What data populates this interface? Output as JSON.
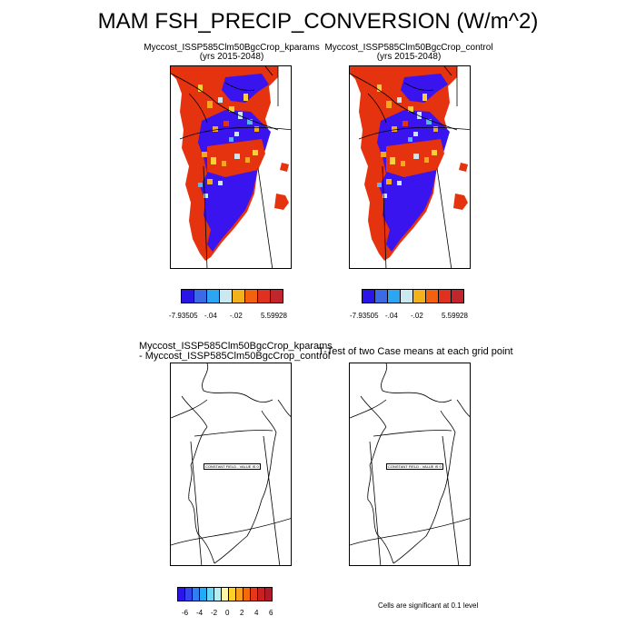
{
  "title": "MAM FSH_PRECIP_CONVERSION (W/m^2)",
  "panels": {
    "top_left": {
      "line1": "Myccost_ISSP585Clm50BgcCrop_kparams",
      "line2": "(yrs 2015-2048)"
    },
    "top_right": {
      "line1": "Myccost_ISSP585Clm50BgcCrop_control",
      "line2": "(yrs 2015-2048)"
    },
    "bottom_left": {
      "line1": "Myccost_ISSP585Clm50BgcCrop_kparams",
      "line2": "- Myccost_ISSP585Clm50BgcCrop_control",
      "const_label": "CONSTANT FIELD - VALUE IS 0"
    },
    "bottom_right": {
      "line1": "T-Test of two Case means at each grid point",
      "const_label": "CONSTANT FIELD - VALUE IS 0"
    }
  },
  "colorbar_top": {
    "colors": [
      "#2a14e6",
      "#3c6ae6",
      "#2ca6f2",
      "#c9e8ef",
      "#f2b21c",
      "#f26010",
      "#e03020",
      "#c0262c"
    ],
    "labels": [
      "-7.93505",
      "-.04",
      "-.02",
      "5.59928"
    ]
  },
  "colorbar_bottom": {
    "colors": [
      "#2a14e6",
      "#3346f0",
      "#2f7ef2",
      "#22aaf5",
      "#68d6f5",
      "#b8ecf5",
      "#fff6a8",
      "#ffd02a",
      "#f8a01c",
      "#f26a10",
      "#e63818",
      "#cc2020",
      "#b01a2a"
    ],
    "labels": [
      "-6",
      "-4",
      "-2",
      "0",
      "2",
      "4",
      "6"
    ]
  },
  "significance_note": "Cells are significant at 0.1 level",
  "map_colors": {
    "red": "#e5330f",
    "blue": "#3a14ee",
    "orange": "#f7a61d",
    "yellow": "#f9cf3a",
    "light": "#c9e8ef",
    "cyan": "#5ab4f2",
    "outline": "#000000"
  }
}
